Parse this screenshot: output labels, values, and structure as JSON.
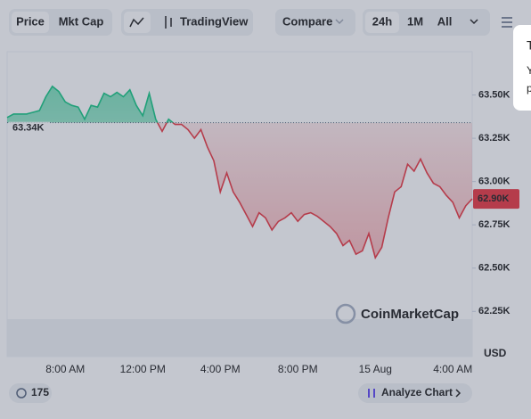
{
  "toolbar": {
    "tabs": [
      "Price",
      "Mkt Cap"
    ],
    "tradingview": "TradingView",
    "compare": "Compare",
    "ranges": [
      "24h",
      "1M",
      "All"
    ]
  },
  "chart_data": {
    "type": "line",
    "categories": [
      null,
      null,
      null,
      null,
      null,
      null,
      null,
      null,
      null,
      "8:00 AM",
      null,
      null,
      null,
      null,
      null,
      null,
      null,
      null,
      null,
      null,
      null,
      "12:00 PM",
      null,
      null,
      null,
      null,
      null,
      null,
      null,
      null,
      null,
      null,
      null,
      "4:00 PM",
      null,
      null,
      null,
      null,
      null,
      null,
      null,
      null,
      null,
      null,
      null,
      "8:00 PM",
      null,
      null,
      null,
      null,
      null,
      null,
      null,
      null,
      null,
      null,
      null,
      "15 Aug",
      null,
      null,
      null,
      null,
      null,
      null,
      null,
      null,
      null,
      null,
      null,
      "4:00 AM",
      null,
      null,
      null
    ],
    "values": [
      63370,
      63390,
      63390,
      63390,
      63400,
      63410,
      63490,
      63550,
      63520,
      63460,
      63440,
      63430,
      63360,
      63440,
      63430,
      63510,
      63490,
      63515,
      63490,
      63530,
      63440,
      63380,
      63510,
      63360,
      63290,
      63360,
      63330,
      63330,
      63300,
      63250,
      63300,
      63200,
      63120,
      62940,
      63050,
      62940,
      62880,
      62810,
      62740,
      62820,
      62790,
      62720,
      62770,
      62790,
      62820,
      62770,
      62810,
      62820,
      62800,
      62770,
      62740,
      62700,
      62630,
      62660,
      62580,
      62600,
      62700,
      62560,
      62620,
      62790,
      62940,
      62970,
      63100,
      63060,
      63130,
      63050,
      62990,
      62970,
      62920,
      62880,
      62790,
      62860,
      62900
    ],
    "up_color": "#16c784",
    "down_color": "#ea3943",
    "ylim": [
      62200,
      63750
    ],
    "yticks": [
      {
        "value": 62250,
        "label": "62.25K"
      },
      {
        "value": 62500,
        "label": "62.50K"
      },
      {
        "value": 62750,
        "label": "62.75K"
      },
      {
        "value": 63000,
        "label": "63.00K"
      },
      {
        "value": 63250,
        "label": "63.25K"
      },
      {
        "value": 63500,
        "label": "63.50K"
      }
    ],
    "reference": {
      "value": 63340,
      "label": "63.34K"
    },
    "last_price": {
      "value": 62900,
      "label": "62.90K"
    },
    "y_unit": "USD",
    "watermark": "CoinMarketCap"
  },
  "footer": {
    "history_count": "175",
    "analyze": "Analyze Chart"
  },
  "popup": {
    "lines": [
      "T",
      "Y",
      "p"
    ]
  }
}
